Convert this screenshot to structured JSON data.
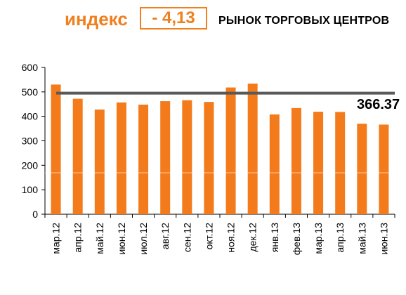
{
  "header": {
    "index_word": "индекс",
    "index_value": "- 4,13",
    "market_title": "РЫНОК ТОРГОВЫХ ЦЕНТРОВ"
  },
  "colors": {
    "bar": "#f47b1c",
    "reference_line": "#595959",
    "accent": "#f07f1e"
  },
  "chart_data": {
    "type": "bar",
    "categories": [
      "мар.12",
      "апр.12",
      "май.12",
      "июн.12",
      "июл.12",
      "авг.12",
      "сен.12",
      "окт.12",
      "ноя.12",
      "дек.12",
      "янв.13",
      "фев.13",
      "мар.13",
      "апр.13",
      "май.13",
      "июн.13"
    ],
    "values": [
      530,
      472,
      428,
      457,
      448,
      462,
      466,
      459,
      518,
      534,
      408,
      434,
      419,
      418,
      370,
      366.37
    ],
    "ylim": [
      0,
      600
    ],
    "yticks": [
      "0",
      "100",
      "200",
      "300",
      "400",
      "500",
      "600"
    ],
    "reference_line": {
      "value": 495,
      "label": "366.37"
    },
    "grid": false,
    "legend": "none",
    "title": "",
    "xlabel": "",
    "ylabel": ""
  }
}
